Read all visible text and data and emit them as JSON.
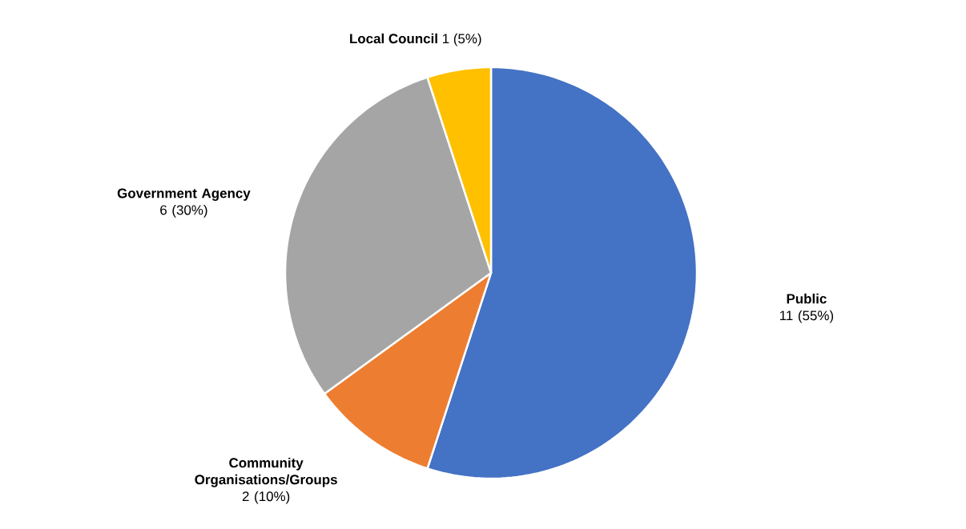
{
  "chart_data": {
    "type": "pie",
    "categories": [
      "Public",
      "Community Organisations/Groups",
      "Government Agency",
      "Local Council"
    ],
    "values": [
      11,
      2,
      6,
      1
    ],
    "value_labels": [
      "11 (55%)",
      "2 (10%)",
      "6 (30%)",
      "1 (5%)"
    ],
    "colors": [
      "#4472c4",
      "#ed7d31",
      "#a5a5a5",
      "#ffc000"
    ]
  }
}
